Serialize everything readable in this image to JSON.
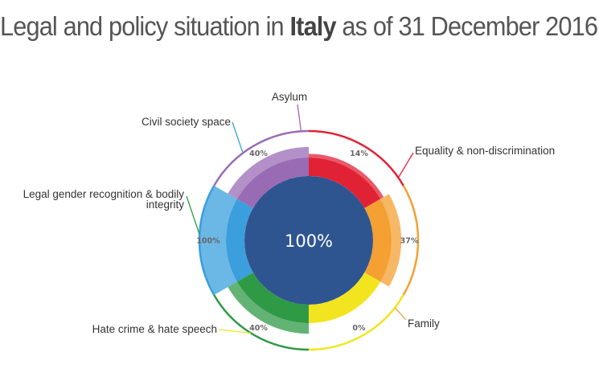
{
  "title": {
    "prefix": "Legal and policy situation in",
    "country": "Italy",
    "suffix": "as of 31 December 2016"
  },
  "chart_data": {
    "type": "donut",
    "title": "Legal and policy situation in Italy as of 31 December 2016",
    "center_value": "100%",
    "categories": [
      {
        "name": "Equality & non-discrimination",
        "color": "#e12235",
        "score": 14,
        "label": "14%"
      },
      {
        "name": "Family",
        "color": "#f4a032",
        "score": 37,
        "label": "37%"
      },
      {
        "name": "Hate crime & hate speech",
        "color": "#f2e51f",
        "score": 0,
        "label": "0%"
      },
      {
        "name": "Legal gender recognition & bodily integrity",
        "color": "#2f9a46",
        "score": 40,
        "label": "40%"
      },
      {
        "name": "Civil society space",
        "color": "#3a9fdc",
        "score": 100,
        "label": "100%"
      },
      {
        "name": "Asylum",
        "color": "#9a6bb5",
        "score": 40,
        "label": "40%"
      }
    ]
  }
}
